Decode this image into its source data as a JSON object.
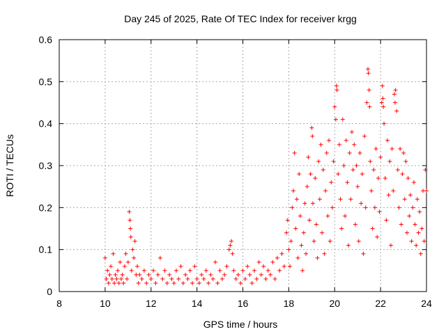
{
  "chart_data": {
    "type": "scatter",
    "title": "Day 245 of 2025, Rate Of TEC Index for receiver krgg",
    "xlabel": "GPS time / hours",
    "ylabel": "ROTI / TECUs",
    "xlim": [
      8,
      24
    ],
    "ylim": [
      0,
      0.6
    ],
    "x_ticks": [
      8,
      10,
      12,
      14,
      16,
      18,
      20,
      22,
      24
    ],
    "x_tick_labels": [
      "8",
      "10",
      "12",
      "14",
      "16",
      "18",
      "20",
      "22",
      "24"
    ],
    "y_ticks": [
      0,
      0.1,
      0.2,
      0.3,
      0.4,
      0.5,
      0.6
    ],
    "y_tick_labels": [
      "0",
      "0.1",
      "0.2",
      "0.3",
      "0.4",
      "0.5",
      "0.6"
    ],
    "grid": true,
    "marker": "+",
    "marker_color": "#ff0000",
    "series": [
      {
        "name": "ROTI",
        "points": [
          [
            10.0,
            0.08
          ],
          [
            10.05,
            0.03
          ],
          [
            10.1,
            0.05
          ],
          [
            10.15,
            0.02
          ],
          [
            10.2,
            0.04
          ],
          [
            10.25,
            0.06
          ],
          [
            10.3,
            0.03
          ],
          [
            10.35,
            0.09
          ],
          [
            10.4,
            0.02
          ],
          [
            10.45,
            0.04
          ],
          [
            10.5,
            0.03
          ],
          [
            10.55,
            0.05
          ],
          [
            10.6,
            0.02
          ],
          [
            10.65,
            0.07
          ],
          [
            10.7,
            0.03
          ],
          [
            10.75,
            0.04
          ],
          [
            10.8,
            0.02
          ],
          [
            10.85,
            0.06
          ],
          [
            10.9,
            0.09
          ],
          [
            10.95,
            0.03
          ],
          [
            11.0,
            0.07
          ],
          [
            11.05,
            0.19
          ],
          [
            11.08,
            0.17
          ],
          [
            11.1,
            0.15
          ],
          [
            11.12,
            0.13
          ],
          [
            11.15,
            0.05
          ],
          [
            11.2,
            0.1
          ],
          [
            11.25,
            0.08
          ],
          [
            11.3,
            0.12
          ],
          [
            11.35,
            0.04
          ],
          [
            11.4,
            0.06
          ],
          [
            11.45,
            0.02
          ],
          [
            11.5,
            0.04
          ],
          [
            11.6,
            0.03
          ],
          [
            11.7,
            0.05
          ],
          [
            11.8,
            0.02
          ],
          [
            11.9,
            0.04
          ],
          [
            12.0,
            0.03
          ],
          [
            12.1,
            0.05
          ],
          [
            12.2,
            0.02
          ],
          [
            12.3,
            0.04
          ],
          [
            12.4,
            0.08
          ],
          [
            12.5,
            0.03
          ],
          [
            12.6,
            0.05
          ],
          [
            12.7,
            0.02
          ],
          [
            12.8,
            0.04
          ],
          [
            12.9,
            0.03
          ],
          [
            13.0,
            0.02
          ],
          [
            13.1,
            0.05
          ],
          [
            13.2,
            0.03
          ],
          [
            13.3,
            0.06
          ],
          [
            13.4,
            0.02
          ],
          [
            13.5,
            0.04
          ],
          [
            13.6,
            0.03
          ],
          [
            13.7,
            0.05
          ],
          [
            13.8,
            0.02
          ],
          [
            13.9,
            0.06
          ],
          [
            14.0,
            0.03
          ],
          [
            14.1,
            0.02
          ],
          [
            14.2,
            0.04
          ],
          [
            14.3,
            0.03
          ],
          [
            14.4,
            0.05
          ],
          [
            14.5,
            0.02
          ],
          [
            14.6,
            0.04
          ],
          [
            14.7,
            0.03
          ],
          [
            14.8,
            0.07
          ],
          [
            14.9,
            0.02
          ],
          [
            15.0,
            0.05
          ],
          [
            15.1,
            0.03
          ],
          [
            15.2,
            0.04
          ],
          [
            15.3,
            0.06
          ],
          [
            15.4,
            0.1
          ],
          [
            15.45,
            0.11
          ],
          [
            15.5,
            0.12
          ],
          [
            15.55,
            0.09
          ],
          [
            15.6,
            0.05
          ],
          [
            15.7,
            0.03
          ],
          [
            15.8,
            0.04
          ],
          [
            15.9,
            0.02
          ],
          [
            16.0,
            0.05
          ],
          [
            16.1,
            0.03
          ],
          [
            16.2,
            0.06
          ],
          [
            16.3,
            0.04
          ],
          [
            16.4,
            0.02
          ],
          [
            16.5,
            0.05
          ],
          [
            16.6,
            0.03
          ],
          [
            16.7,
            0.07
          ],
          [
            16.8,
            0.04
          ],
          [
            16.9,
            0.06
          ],
          [
            17.0,
            0.03
          ],
          [
            17.1,
            0.05
          ],
          [
            17.2,
            0.04
          ],
          [
            17.3,
            0.07
          ],
          [
            17.4,
            0.03
          ],
          [
            17.5,
            0.08
          ],
          [
            17.6,
            0.05
          ],
          [
            17.7,
            0.09
          ],
          [
            17.8,
            0.06
          ],
          [
            17.9,
            0.14
          ],
          [
            17.95,
            0.17
          ],
          [
            18.0,
            0.1
          ],
          [
            18.05,
            0.06
          ],
          [
            18.1,
            0.12
          ],
          [
            18.15,
            0.2
          ],
          [
            18.2,
            0.24
          ],
          [
            18.25,
            0.33
          ],
          [
            18.3,
            0.15
          ],
          [
            18.35,
            0.22
          ],
          [
            18.4,
            0.08
          ],
          [
            18.45,
            0.28
          ],
          [
            18.5,
            0.18
          ],
          [
            18.55,
            0.11
          ],
          [
            18.6,
            0.05
          ],
          [
            18.65,
            0.14
          ],
          [
            18.7,
            0.21
          ],
          [
            18.75,
            0.09
          ],
          [
            18.8,
            0.25
          ],
          [
            18.85,
            0.32
          ],
          [
            18.9,
            0.17
          ],
          [
            18.95,
            0.28
          ],
          [
            19.0,
            0.39
          ],
          [
            19.03,
            0.37
          ],
          [
            19.05,
            0.21
          ],
          [
            19.1,
            0.12
          ],
          [
            19.15,
            0.27
          ],
          [
            19.2,
            0.16
          ],
          [
            19.25,
            0.08
          ],
          [
            19.3,
            0.31
          ],
          [
            19.35,
            0.22
          ],
          [
            19.4,
            0.35
          ],
          [
            19.45,
            0.14
          ],
          [
            19.5,
            0.29
          ],
          [
            19.55,
            0.09
          ],
          [
            19.6,
            0.24
          ],
          [
            19.65,
            0.33
          ],
          [
            19.7,
            0.18
          ],
          [
            19.75,
            0.36
          ],
          [
            19.8,
            0.12
          ],
          [
            19.85,
            0.26
          ],
          [
            19.9,
            0.2
          ],
          [
            19.95,
            0.31
          ],
          [
            20.0,
            0.44
          ],
          [
            20.05,
            0.41
          ],
          [
            20.08,
            0.49
          ],
          [
            20.1,
            0.48
          ],
          [
            20.15,
            0.28
          ],
          [
            20.2,
            0.35
          ],
          [
            20.25,
            0.22
          ],
          [
            20.3,
            0.15
          ],
          [
            20.35,
            0.41
          ],
          [
            20.4,
            0.3
          ],
          [
            20.45,
            0.18
          ],
          [
            20.5,
            0.36
          ],
          [
            20.55,
            0.26
          ],
          [
            20.6,
            0.11
          ],
          [
            20.65,
            0.33
          ],
          [
            20.7,
            0.22
          ],
          [
            20.75,
            0.38
          ],
          [
            20.8,
            0.29
          ],
          [
            20.85,
            0.35
          ],
          [
            20.9,
            0.16
          ],
          [
            20.95,
            0.3
          ],
          [
            21.0,
            0.25
          ],
          [
            21.05,
            0.12
          ],
          [
            21.1,
            0.33
          ],
          [
            21.15,
            0.21
          ],
          [
            21.2,
            0.28
          ],
          [
            21.25,
            0.09
          ],
          [
            21.3,
            0.37
          ],
          [
            21.35,
            0.2
          ],
          [
            21.4,
            0.45
          ],
          [
            21.45,
            0.53
          ],
          [
            21.47,
            0.52
          ],
          [
            21.5,
            0.48
          ],
          [
            21.52,
            0.44
          ],
          [
            21.55,
            0.31
          ],
          [
            21.6,
            0.24
          ],
          [
            21.65,
            0.15
          ],
          [
            21.7,
            0.29
          ],
          [
            21.75,
            0.2
          ],
          [
            21.8,
            0.34
          ],
          [
            21.85,
            0.13
          ],
          [
            21.9,
            0.27
          ],
          [
            21.95,
            0.19
          ],
          [
            22.0,
            0.32
          ],
          [
            22.05,
            0.45
          ],
          [
            22.08,
            0.49
          ],
          [
            22.1,
            0.46
          ],
          [
            22.12,
            0.44
          ],
          [
            22.15,
            0.4
          ],
          [
            22.2,
            0.27
          ],
          [
            22.25,
            0.17
          ],
          [
            22.3,
            0.36
          ],
          [
            22.35,
            0.23
          ],
          [
            22.4,
            0.31
          ],
          [
            22.45,
            0.11
          ],
          [
            22.5,
            0.34
          ],
          [
            22.55,
            0.24
          ],
          [
            22.6,
            0.47
          ],
          [
            22.63,
            0.45
          ],
          [
            22.65,
            0.48
          ],
          [
            22.7,
            0.43
          ],
          [
            22.75,
            0.29
          ],
          [
            22.8,
            0.2
          ],
          [
            22.85,
            0.34
          ],
          [
            22.9,
            0.16
          ],
          [
            22.95,
            0.28
          ],
          [
            23.0,
            0.33
          ],
          [
            23.05,
            0.22
          ],
          [
            23.1,
            0.31
          ],
          [
            23.15,
            0.14
          ],
          [
            23.2,
            0.27
          ],
          [
            23.25,
            0.18
          ],
          [
            23.3,
            0.23
          ],
          [
            23.35,
            0.12
          ],
          [
            23.4,
            0.2
          ],
          [
            23.45,
            0.26
          ],
          [
            23.5,
            0.16
          ],
          [
            23.55,
            0.11
          ],
          [
            23.6,
            0.22
          ],
          [
            23.65,
            0.14
          ],
          [
            23.7,
            0.19
          ],
          [
            23.75,
            0.09
          ],
          [
            23.8,
            0.15
          ],
          [
            23.85,
            0.24
          ],
          [
            23.9,
            0.12
          ],
          [
            23.95,
            0.29
          ],
          [
            24.0,
            0.24
          ]
        ]
      }
    ]
  }
}
